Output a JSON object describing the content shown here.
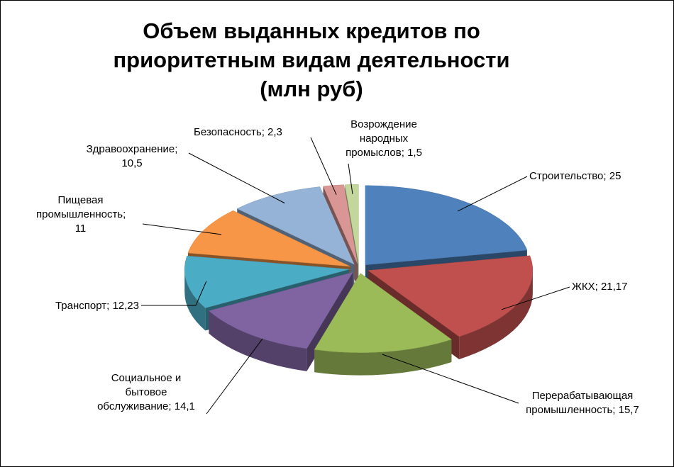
{
  "chart_data": {
    "type": "pie",
    "title": "Объем выданных кредитов по приоритетным видам деятельности (млн руб)",
    "categories": [
      "Строительство",
      "ЖКХ",
      "Перерабатывающая промышленность",
      "Социальное и бытовое обслуживание",
      "Транспорт",
      "Пищевая промышленность",
      "Здравоохранение",
      "Безопасность",
      "Возрождение народных промыслов"
    ],
    "values": [
      25,
      21.17,
      15.7,
      14.1,
      12.23,
      11,
      10.5,
      2.3,
      1.5
    ],
    "value_labels": [
      "25",
      "21,17",
      "15,7",
      "14,1",
      "12,23",
      "11",
      "10,5",
      "2,3",
      "1,5"
    ],
    "label_separator": "; ",
    "colors": [
      "#4f81bd",
      "#c0504d",
      "#9bbb59",
      "#8064a2",
      "#4bacc6",
      "#f79646",
      "#95b3d7",
      "#d99694",
      "#c3d69b"
    ]
  }
}
